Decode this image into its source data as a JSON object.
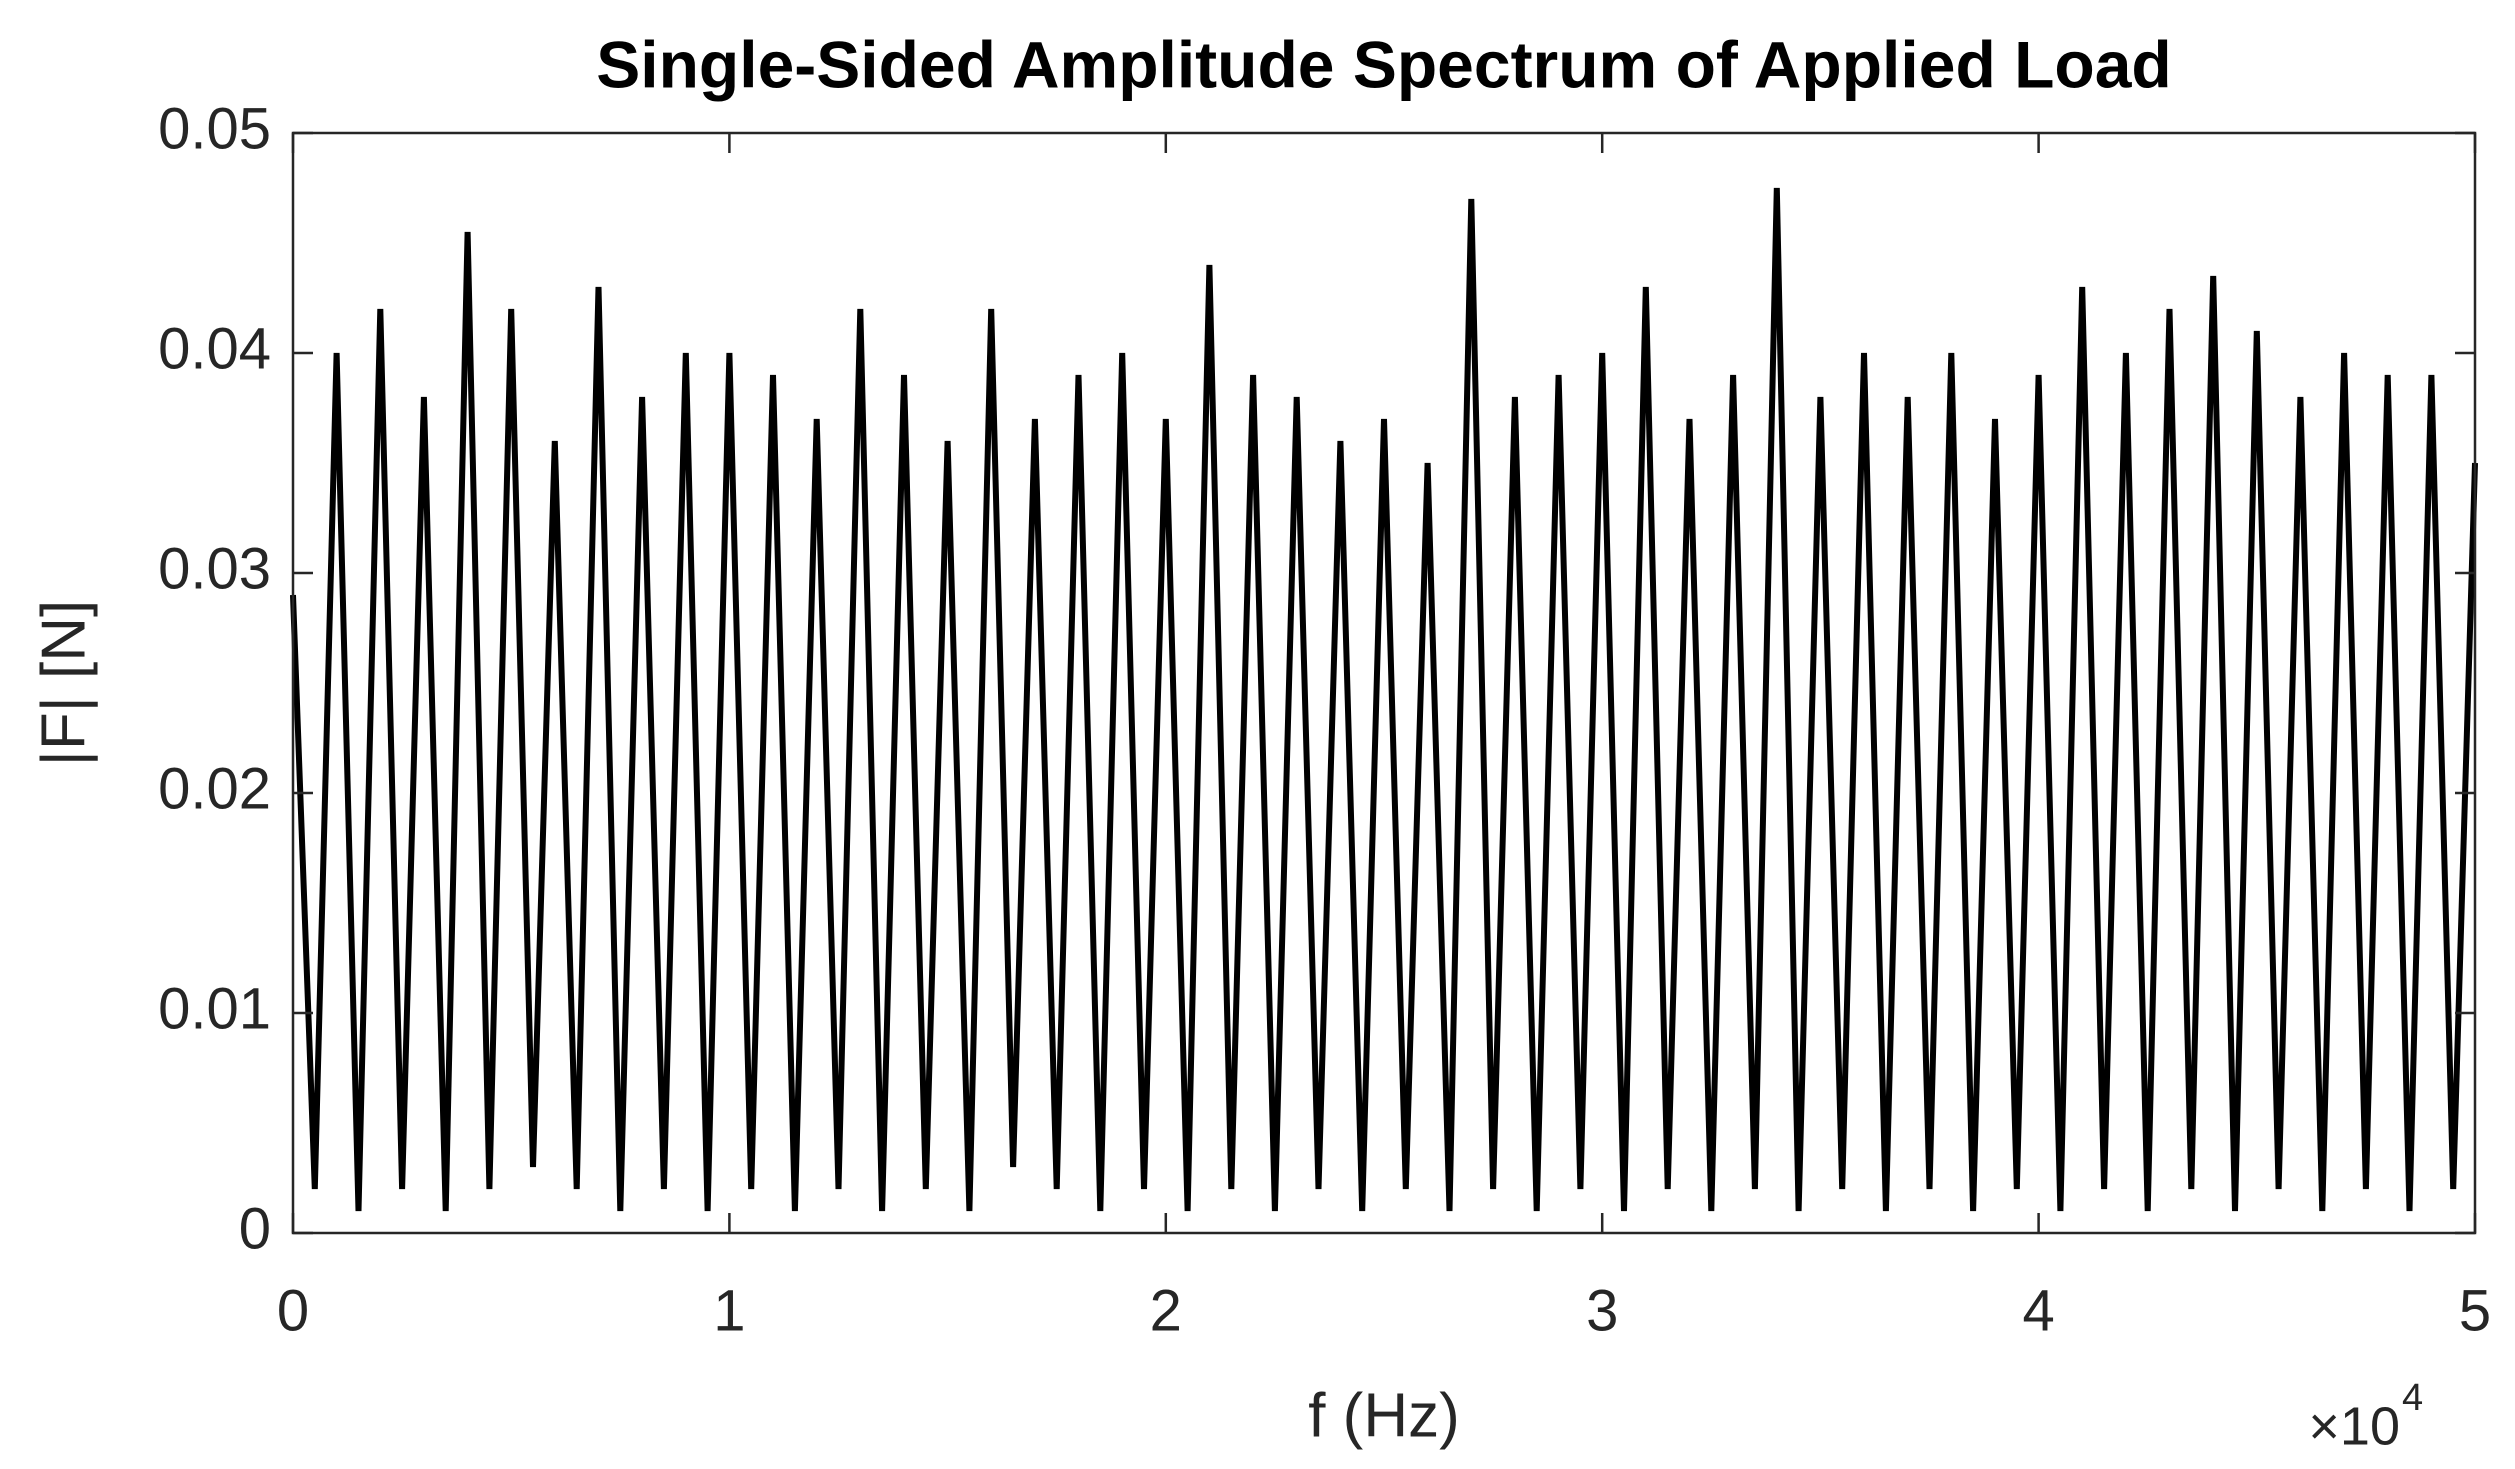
{
  "chart_data": {
    "type": "line",
    "title": "Single-Sided Amplitude Spectrum of Applied Load",
    "x_label": "f (Hz)",
    "y_label": "|F| [N]",
    "x_multiplier": "×10",
    "x_multiplier_power": "4",
    "xlim": [
      0,
      5
    ],
    "xticks": [
      0,
      1,
      2,
      3,
      4,
      5
    ],
    "ylim": [
      0,
      0.05
    ],
    "yticks": [
      0,
      0.01,
      0.02,
      0.03,
      0.04,
      0.05
    ],
    "grid": false,
    "series": [
      {
        "color": "#000000",
        "x": [
          0,
          0.05,
          0.1,
          0.15,
          0.2,
          0.25,
          0.3,
          0.35,
          0.4,
          0.45,
          0.5,
          0.55,
          0.6,
          0.65,
          0.7,
          0.75,
          0.8,
          0.85,
          0.9,
          0.95,
          1,
          1.05,
          1.1,
          1.15,
          1.2,
          1.25,
          1.3,
          1.35,
          1.4,
          1.45,
          1.5,
          1.55,
          1.6,
          1.65,
          1.7,
          1.75,
          1.8,
          1.85,
          1.9,
          1.95,
          2,
          2.05,
          2.1,
          2.15,
          2.2,
          2.25,
          2.3,
          2.35,
          2.4,
          2.45,
          2.5,
          2.55,
          2.6,
          2.65,
          2.7,
          2.75,
          2.8,
          2.85,
          2.9,
          2.95,
          3,
          3.05,
          3.1,
          3.15,
          3.2,
          3.25,
          3.3,
          3.35,
          3.4,
          3.45,
          3.5,
          3.55,
          3.6,
          3.65,
          3.7,
          3.75,
          3.8,
          3.85,
          3.9,
          3.95,
          4,
          4.05,
          4.1,
          4.15,
          4.2,
          4.25,
          4.3,
          4.35,
          4.4,
          4.45,
          4.5,
          4.55,
          4.6,
          4.65,
          4.7,
          4.75,
          4.8,
          4.85,
          4.9,
          4.95,
          5
        ],
        "values": [
          0.029,
          0.002,
          0.04,
          0.001,
          0.042,
          0.002,
          0.038,
          0.001,
          0.0455,
          0.002,
          0.042,
          0.003,
          0.036,
          0.002,
          0.043,
          0.001,
          0.038,
          0.002,
          0.04,
          0.001,
          0.04,
          0.002,
          0.039,
          0.001,
          0.037,
          0.002,
          0.042,
          0.001,
          0.039,
          0.002,
          0.036,
          0.001,
          0.042,
          0.003,
          0.037,
          0.002,
          0.039,
          0.001,
          0.04,
          0.002,
          0.037,
          0.001,
          0.044,
          0.002,
          0.039,
          0.001,
          0.038,
          0.002,
          0.036,
          0.001,
          0.037,
          0.002,
          0.035,
          0.001,
          0.047,
          0.002,
          0.038,
          0.001,
          0.039,
          0.002,
          0.04,
          0.001,
          0.043,
          0.002,
          0.037,
          0.001,
          0.039,
          0.002,
          0.0475,
          0.001,
          0.038,
          0.002,
          0.04,
          0.001,
          0.038,
          0.002,
          0.04,
          0.001,
          0.037,
          0.002,
          0.039,
          0.001,
          0.043,
          0.002,
          0.04,
          0.001,
          0.042,
          0.002,
          0.0435,
          0.001,
          0.041,
          0.002,
          0.038,
          0.001,
          0.04,
          0.002,
          0.039,
          0.001,
          0.039,
          0.002,
          0.035
        ]
      }
    ]
  }
}
